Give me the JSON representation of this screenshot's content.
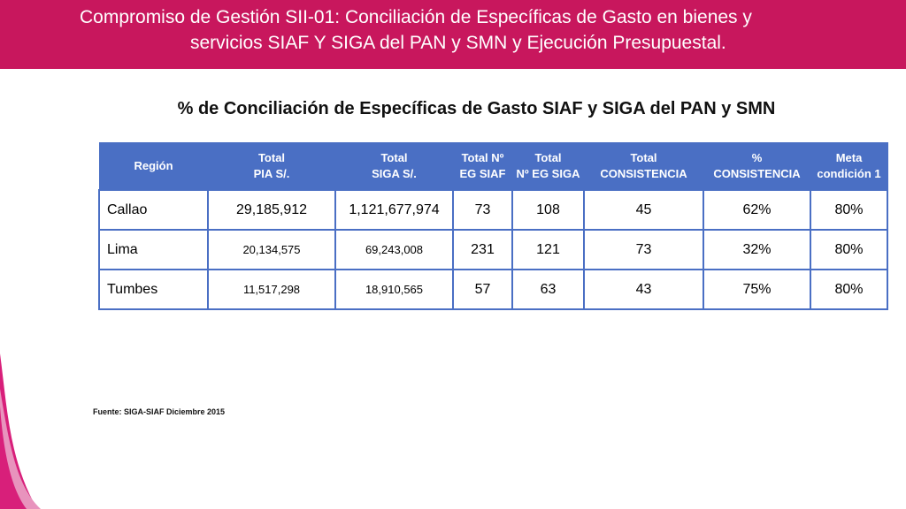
{
  "header": {
    "title_line1": "Compromiso de Gestión SII-01: Conciliación de Específicas de Gasto en bienes y",
    "title_line2": "servicios SIAF Y SIGA del PAN y SMN y Ejecución Presupuestal."
  },
  "subtitle": "% de Conciliación de Específicas de Gasto SIAF y SIGA del PAN y SMN",
  "table": {
    "headers": [
      [
        "Región"
      ],
      [
        "Total",
        "PIA S/."
      ],
      [
        "Total",
        "SIGA S/."
      ],
      [
        "Total Nº",
        "EG SIAF"
      ],
      [
        "Total",
        "Nº EG SIGA"
      ],
      [
        "Total",
        "CONSISTENCIA"
      ],
      [
        "%",
        "CONSISTENCIA"
      ],
      [
        "Meta",
        "condición 1"
      ]
    ],
    "rows": [
      [
        "Callao",
        "29,185,912",
        "1,121,677,974",
        "73",
        "108",
        "45",
        "62%",
        "80%"
      ],
      [
        "Lima",
        "20,134,575",
        "69,243,008",
        "231",
        "121",
        "73",
        "32%",
        "80%"
      ],
      [
        "Tumbes",
        "11,517,298",
        "18,910,565",
        "57",
        "63",
        "43",
        "75%",
        "80%"
      ]
    ]
  },
  "source_note": "Fuente: SIGA-SIAF Diciembre 2015",
  "colors": {
    "header_band": "#c8175d",
    "table_header": "#4a6fc4"
  }
}
